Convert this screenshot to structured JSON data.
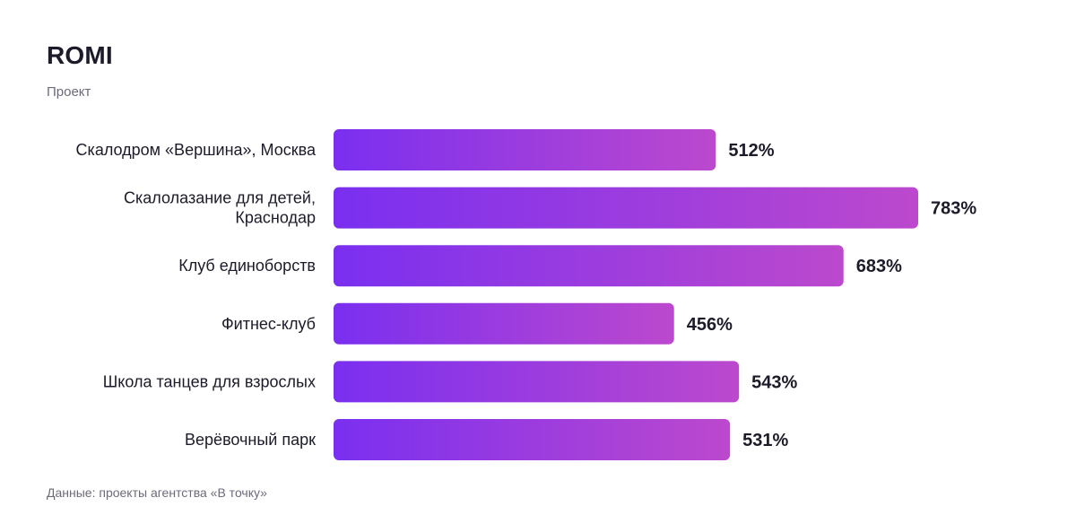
{
  "header": {
    "title": "ROMI",
    "subtitle": "Проект"
  },
  "footer": {
    "note": "Данные: проекты агентства «В точку»"
  },
  "colors": {
    "bar_gradient_start": "#7a2ff0",
    "bar_gradient_end": "#bc49cd",
    "label_text": "#1c1b29",
    "value_text": "#1c1b29"
  },
  "chart_data": {
    "type": "bar",
    "orientation": "horizontal",
    "title": "ROMI",
    "subtitle": "Проект",
    "categories": [
      [
        "Скалодром «Вершина», Москва"
      ],
      [
        "Скалолазание для детей,",
        "Краснодар"
      ],
      [
        "Клуб единоборств"
      ],
      [
        "Фитнес-клуб"
      ],
      [
        "Школа танцев для взрослых"
      ],
      [
        "Верёвочный парк"
      ]
    ],
    "values": [
      512,
      783,
      683,
      456,
      543,
      531
    ],
    "value_labels": [
      "512%",
      "783%",
      "683%",
      "456%",
      "543%",
      "531%"
    ],
    "unit": "%",
    "grid": false,
    "legend": "none"
  }
}
